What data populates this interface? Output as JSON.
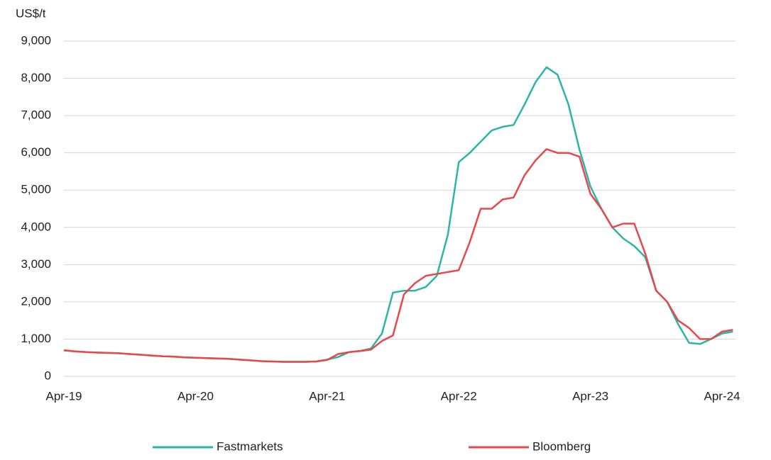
{
  "chart_data": {
    "type": "line",
    "y_axis_label": "US$/t",
    "categories": [
      "Apr-19",
      null,
      null,
      null,
      null,
      null,
      null,
      null,
      null,
      null,
      null,
      null,
      "Apr-20",
      null,
      null,
      null,
      null,
      null,
      null,
      null,
      null,
      null,
      null,
      null,
      "Apr-21",
      null,
      null,
      null,
      null,
      null,
      null,
      null,
      null,
      null,
      null,
      null,
      "Apr-22",
      null,
      null,
      null,
      null,
      null,
      null,
      null,
      null,
      null,
      null,
      null,
      "Apr-23",
      null,
      null,
      null,
      null,
      null,
      null,
      null,
      null,
      null,
      null,
      null,
      "Apr-24",
      null
    ],
    "series": [
      {
        "name": "Fastmarkets",
        "color": "#2bb5a8",
        "values": [
          700,
          670,
          650,
          640,
          630,
          620,
          600,
          580,
          560,
          540,
          530,
          510,
          500,
          490,
          480,
          470,
          450,
          430,
          410,
          400,
          390,
          390,
          390,
          400,
          450,
          520,
          650,
          680,
          750,
          1150,
          2250,
          2300,
          2300,
          2400,
          2700,
          3800,
          5750,
          6000,
          6300,
          6600,
          6700,
          6750,
          7300,
          7900,
          8300,
          8100,
          7300,
          6100,
          5100,
          4500,
          4000,
          3700,
          3500,
          3200,
          2300,
          2000,
          1400,
          900,
          870,
          1000,
          1150,
          1200
        ]
      },
      {
        "name": "Bloomberg",
        "color": "#e8474c",
        "values": [
          700,
          670,
          650,
          640,
          630,
          620,
          600,
          580,
          560,
          540,
          530,
          510,
          500,
          490,
          480,
          470,
          450,
          430,
          410,
          400,
          390,
          390,
          390,
          400,
          440,
          600,
          650,
          680,
          720,
          950,
          1100,
          2200,
          2500,
          2700,
          2750,
          2800,
          2850,
          3600,
          4500,
          4500,
          4750,
          4800,
          5400,
          5800,
          6100,
          6000,
          6000,
          5900,
          4900,
          4500,
          4000,
          4100,
          4100,
          3300,
          2300,
          2000,
          1500,
          1300,
          1000,
          1000,
          1200,
          1250
        ]
      }
    ],
    "ylim": [
      0,
      9000
    ],
    "yticks": [
      0,
      {
        "value": 1000,
        "label": "1,000"
      },
      {
        "value": 2000,
        "label": "2,000"
      },
      {
        "value": 3000,
        "label": "3,000"
      },
      {
        "value": 4000,
        "label": "4,000"
      },
      {
        "value": 5000,
        "label": "5,000"
      },
      {
        "value": 6000,
        "label": "6,000"
      },
      {
        "value": 7000,
        "label": "7,000"
      },
      {
        "value": 8000,
        "label": "8,000"
      },
      {
        "value": 9000,
        "label": "9,000"
      }
    ],
    "grid": true,
    "legend": "bottom"
  }
}
